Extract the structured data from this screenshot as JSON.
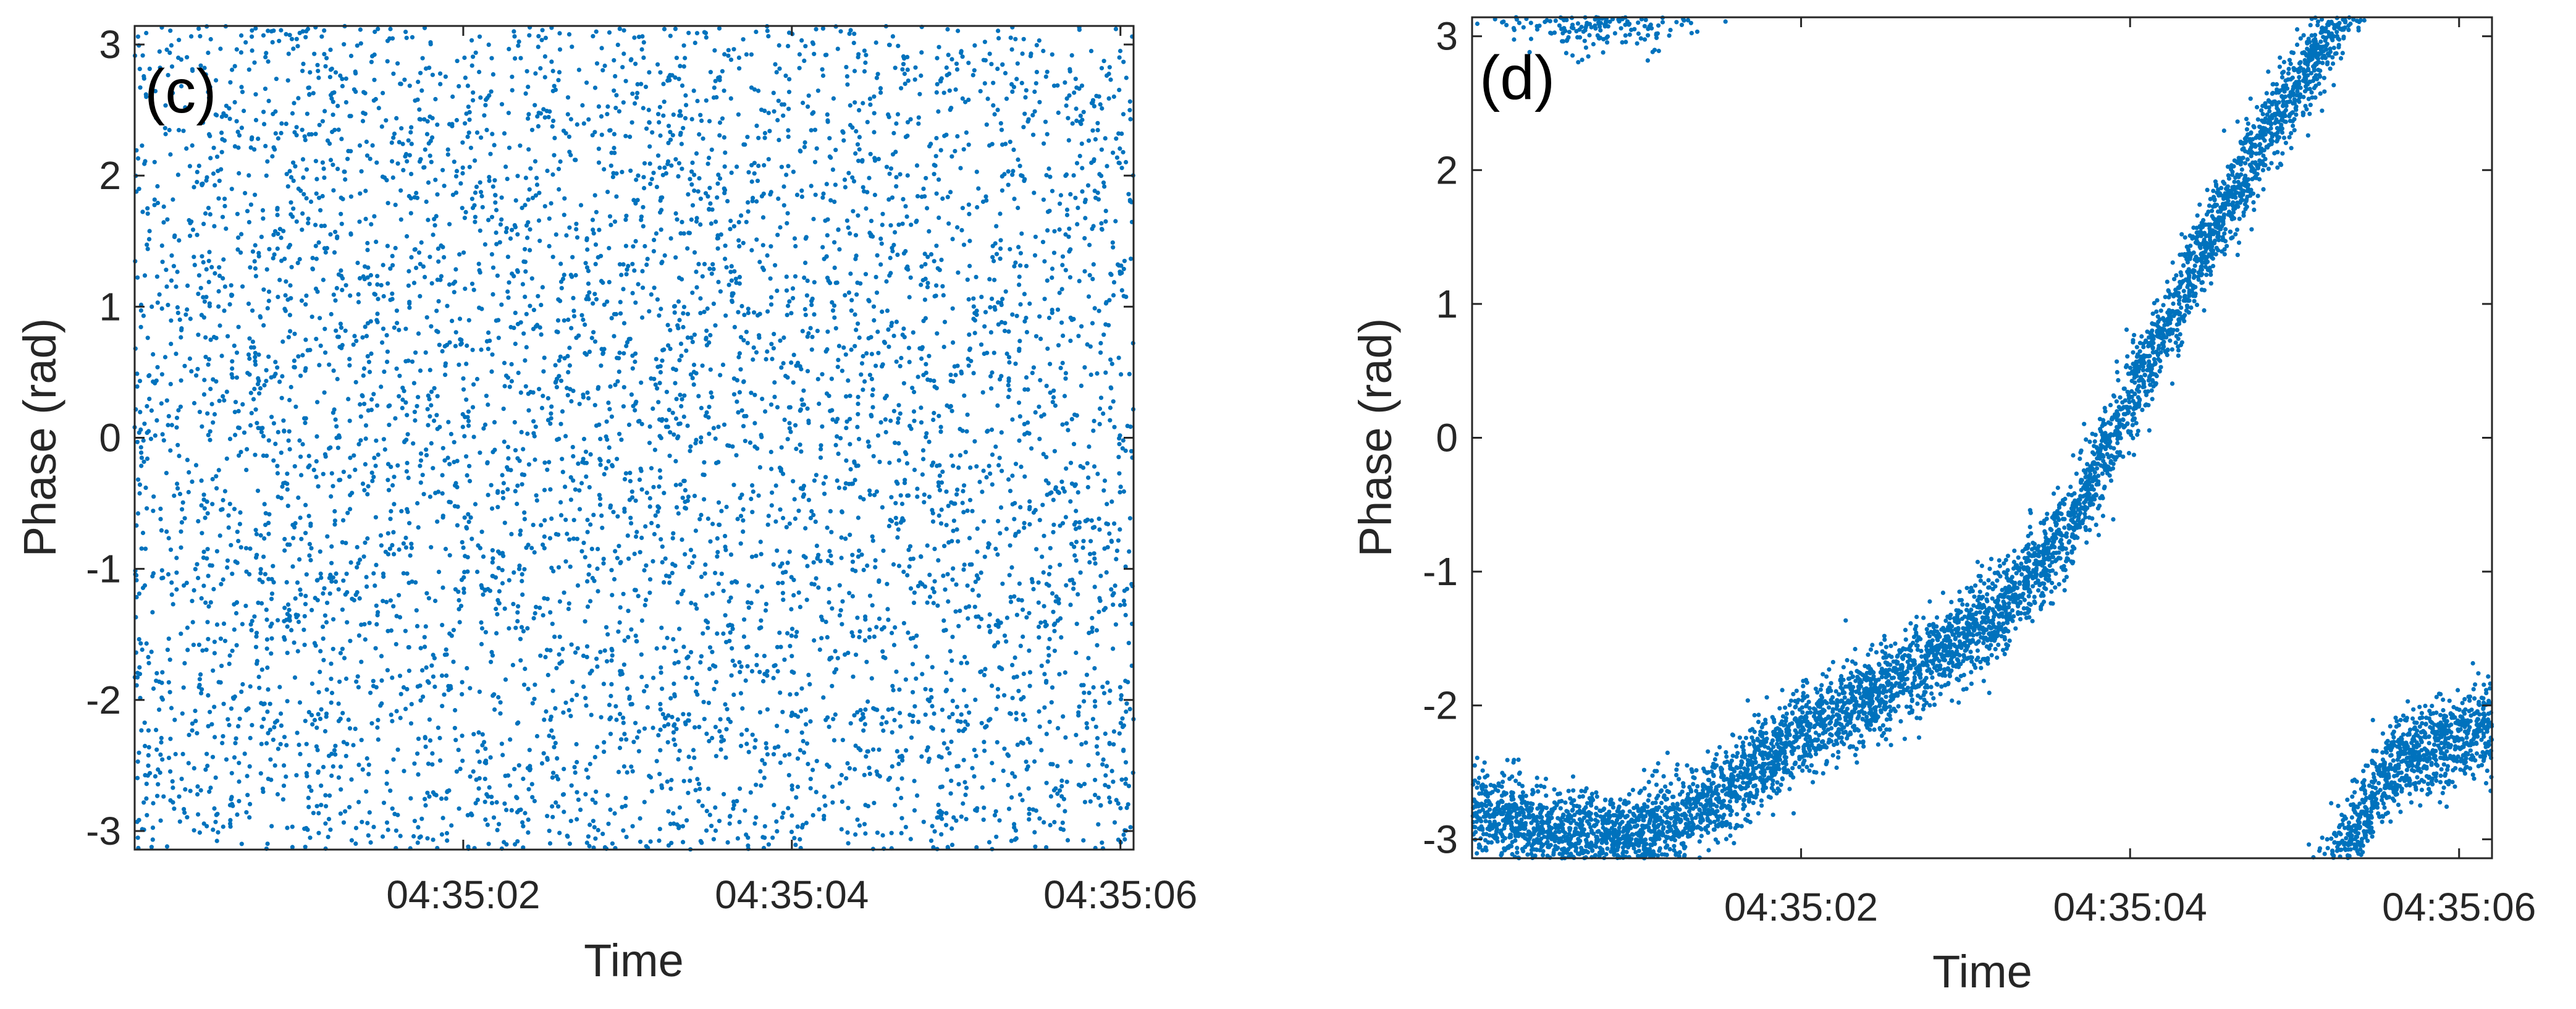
{
  "chart_data": [
    {
      "type": "scatter",
      "panel_label": "(c)",
      "xlabel": "Time",
      "ylabel": "Phase (rad)",
      "x_unit": "seconds after 04:35:00",
      "xlim": [
        0.0,
        6.08
      ],
      "ylim": [
        -3.1416,
        3.1416
      ],
      "yticks": [
        3,
        2,
        1,
        0,
        -1,
        -2,
        -3
      ],
      "ytick_labels": [
        "3",
        "2",
        "1",
        "0",
        "-1",
        "-2",
        "-3"
      ],
      "xticks": [
        2,
        4,
        6
      ],
      "xtick_labels": [
        "04:35:02",
        "04:35:04",
        "04:35:06"
      ],
      "grid": false,
      "marker_color": "#0072BD",
      "distribution": "uniform",
      "n_points": 6000,
      "seed": 7
    },
    {
      "type": "scatter",
      "panel_label": "(d)",
      "xlabel": "Time",
      "ylabel": "Phase (rad)",
      "x_unit": "seconds after 04:35:00",
      "xlim": [
        0.0,
        6.2
      ],
      "ylim": [
        -3.1416,
        3.1416
      ],
      "yticks": [
        3,
        2,
        1,
        0,
        -1,
        -2,
        -3
      ],
      "ytick_labels": [
        "3",
        "2",
        "1",
        "0",
        "-1",
        "-2",
        "-3"
      ],
      "xticks": [
        2,
        4,
        6
      ],
      "xtick_labels": [
        "04:35:02",
        "04:35:04",
        "04:35:06"
      ],
      "grid": false,
      "marker_color": "#0072BD",
      "distribution": "wrapped-trend",
      "trend_x": [
        0.0,
        0.5,
        0.8,
        1.2,
        1.6,
        2.0,
        2.4,
        2.8,
        3.2,
        3.6,
        4.0,
        4.4,
        4.8,
        5.2,
        5.6,
        6.0,
        6.2
      ],
      "trend_y": [
        -2.8,
        -2.95,
        -3.0,
        -2.9,
        -2.6,
        -2.2,
        -1.95,
        -1.65,
        -1.3,
        -0.75,
        0.3,
        1.3,
        2.2,
        3.0,
        3.85,
        4.05,
        4.15
      ],
      "n_points": 6000,
      "seed": 11
    }
  ]
}
